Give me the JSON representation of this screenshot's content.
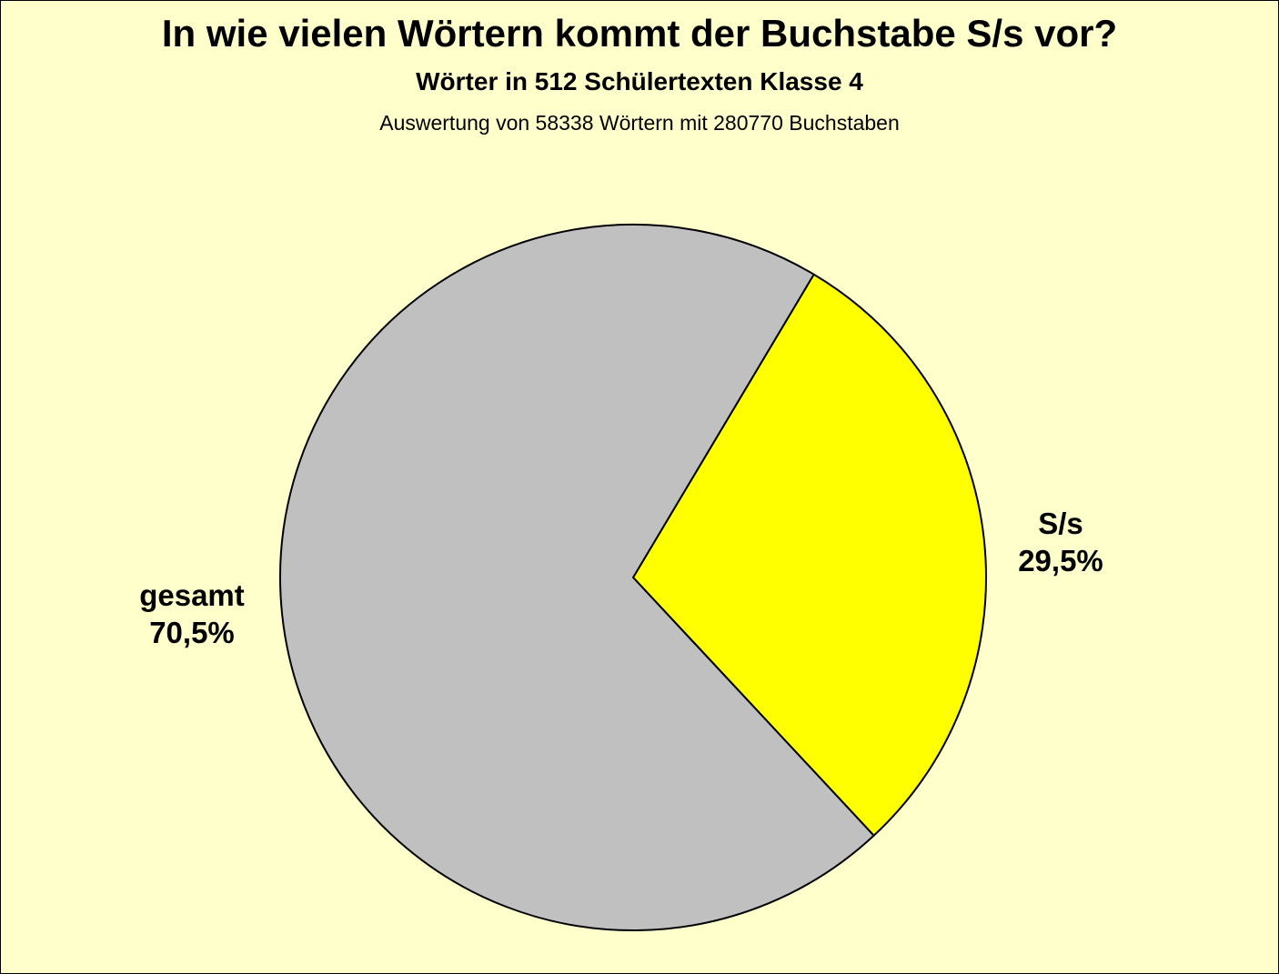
{
  "chart_data": {
    "type": "pie",
    "title": "In wie vielen Wörtern kommt der Buchstabe S/s vor?",
    "subtitle": "Wörter in 512 Schülertexten Klasse 4",
    "caption": "Auswertung von 58338 Wörtern mit 280770 Buchstaben",
    "slices": [
      {
        "label": "S/s",
        "value": 29.5,
        "value_label": "29,5%",
        "color": "#ffff00"
      },
      {
        "label": "gesamt",
        "value": 70.5,
        "value_label": "70,5%",
        "color": "#c0c0c0"
      }
    ],
    "background_color": "#ffffcc",
    "legend": "none"
  }
}
